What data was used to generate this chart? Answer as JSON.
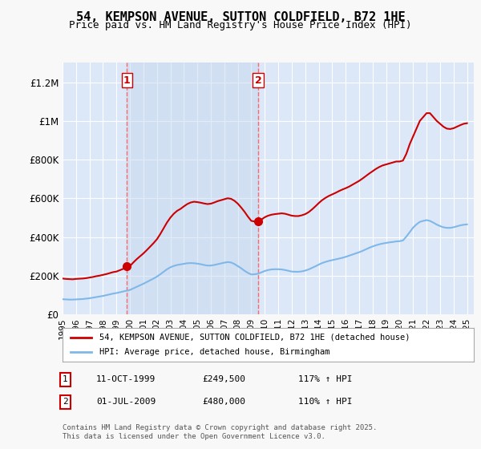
{
  "title": "54, KEMPSON AVENUE, SUTTON COLDFIELD, B72 1HE",
  "subtitle": "Price paid vs. HM Land Registry's House Price Index (HPI)",
  "ylabel_ticks": [
    "£0",
    "£200K",
    "£400K",
    "£600K",
    "£800K",
    "£1M",
    "£1.2M"
  ],
  "ytick_values": [
    0,
    200000,
    400000,
    600000,
    800000,
    1000000,
    1200000
  ],
  "ylim": [
    0,
    1300000
  ],
  "xlim_start": 1995.0,
  "xlim_end": 2025.5,
  "background_color": "#f0f4ff",
  "plot_bg_color": "#dce8f8",
  "red_line_color": "#cc0000",
  "blue_line_color": "#7fb8e8",
  "marker1_color": "#cc0000",
  "marker2_color": "#cc0000",
  "vline_color": "#ff6666",
  "vline_x1": 1999.78,
  "vline_x2": 2009.5,
  "marker1_x": 1999.78,
  "marker1_y": 249500,
  "marker2_x": 2009.5,
  "marker2_y": 480000,
  "legend_line1": "54, KEMPSON AVENUE, SUTTON COLDFIELD, B72 1HE (detached house)",
  "legend_line2": "HPI: Average price, detached house, Birmingham",
  "footnote": "Contains HM Land Registry data © Crown copyright and database right 2025.\nThis data is licensed under the Open Government Licence v3.0.",
  "table_row1_num": "1",
  "table_row1_date": "11-OCT-1999",
  "table_row1_price": "£249,500",
  "table_row1_hpi": "117% ↑ HPI",
  "table_row2_num": "2",
  "table_row2_date": "01-JUL-2009",
  "table_row2_price": "£480,000",
  "table_row2_hpi": "110% ↑ HPI",
  "red_hpi_data": {
    "years": [
      1995.0,
      1995.25,
      1995.5,
      1995.75,
      1996.0,
      1996.25,
      1996.5,
      1996.75,
      1997.0,
      1997.25,
      1997.5,
      1997.75,
      1998.0,
      1998.25,
      1998.5,
      1998.75,
      1999.0,
      1999.25,
      1999.5,
      1999.75,
      2000.0,
      2000.25,
      2000.5,
      2000.75,
      2001.0,
      2001.25,
      2001.5,
      2001.75,
      2002.0,
      2002.25,
      2002.5,
      2002.75,
      2003.0,
      2003.25,
      2003.5,
      2003.75,
      2004.0,
      2004.25,
      2004.5,
      2004.75,
      2005.0,
      2005.25,
      2005.5,
      2005.75,
      2006.0,
      2006.25,
      2006.5,
      2006.75,
      2007.0,
      2007.25,
      2007.5,
      2007.75,
      2008.0,
      2008.25,
      2008.5,
      2008.75,
      2009.0,
      2009.25,
      2009.5,
      2009.75,
      2010.0,
      2010.25,
      2010.5,
      2010.75,
      2011.0,
      2011.25,
      2011.5,
      2011.75,
      2012.0,
      2012.25,
      2012.5,
      2012.75,
      2013.0,
      2013.25,
      2013.5,
      2013.75,
      2014.0,
      2014.25,
      2014.5,
      2014.75,
      2015.0,
      2015.25,
      2015.5,
      2015.75,
      2016.0,
      2016.25,
      2016.5,
      2016.75,
      2017.0,
      2017.25,
      2017.5,
      2017.75,
      2018.0,
      2018.25,
      2018.5,
      2018.75,
      2019.0,
      2019.25,
      2019.5,
      2019.75,
      2020.0,
      2020.25,
      2020.5,
      2020.75,
      2021.0,
      2021.25,
      2021.5,
      2021.75,
      2022.0,
      2022.25,
      2022.5,
      2022.75,
      2023.0,
      2023.25,
      2023.5,
      2023.75,
      2024.0,
      2024.25,
      2024.5,
      2024.75,
      2025.0
    ],
    "values": [
      185000,
      183000,
      182000,
      181000,
      183000,
      184000,
      185000,
      187000,
      190000,
      193000,
      197000,
      200000,
      204000,
      208000,
      213000,
      218000,
      221000,
      228000,
      235000,
      242000,
      249500,
      268000,
      285000,
      300000,
      315000,
      332000,
      350000,
      368000,
      388000,
      415000,
      445000,
      475000,
      500000,
      520000,
      535000,
      545000,
      558000,
      570000,
      578000,
      582000,
      580000,
      577000,
      573000,
      570000,
      572000,
      578000,
      585000,
      590000,
      595000,
      600000,
      597000,
      587000,
      572000,
      552000,
      530000,
      505000,
      483000,
      480000,
      480000,
      490000,
      502000,
      510000,
      515000,
      518000,
      520000,
      522000,
      520000,
      515000,
      510000,
      508000,
      508000,
      512000,
      518000,
      528000,
      542000,
      558000,
      575000,
      590000,
      602000,
      612000,
      620000,
      628000,
      637000,
      645000,
      652000,
      660000,
      670000,
      680000,
      690000,
      702000,
      715000,
      728000,
      740000,
      752000,
      762000,
      770000,
      775000,
      780000,
      785000,
      790000,
      790000,
      795000,
      830000,
      880000,
      920000,
      960000,
      1000000,
      1020000,
      1040000,
      1040000,
      1020000,
      1000000,
      985000,
      970000,
      960000,
      958000,
      962000,
      970000,
      978000,
      985000,
      988000
    ]
  },
  "blue_hpi_data": {
    "years": [
      1995.0,
      1995.25,
      1995.5,
      1995.75,
      1996.0,
      1996.25,
      1996.5,
      1996.75,
      1997.0,
      1997.25,
      1997.5,
      1997.75,
      1998.0,
      1998.25,
      1998.5,
      1998.75,
      1999.0,
      1999.25,
      1999.5,
      1999.75,
      2000.0,
      2000.25,
      2000.5,
      2000.75,
      2001.0,
      2001.25,
      2001.5,
      2001.75,
      2002.0,
      2002.25,
      2002.5,
      2002.75,
      2003.0,
      2003.25,
      2003.5,
      2003.75,
      2004.0,
      2004.25,
      2004.5,
      2004.75,
      2005.0,
      2005.25,
      2005.5,
      2005.75,
      2006.0,
      2006.25,
      2006.5,
      2006.75,
      2007.0,
      2007.25,
      2007.5,
      2007.75,
      2008.0,
      2008.25,
      2008.5,
      2008.75,
      2009.0,
      2009.25,
      2009.5,
      2009.75,
      2010.0,
      2010.25,
      2010.5,
      2010.75,
      2011.0,
      2011.25,
      2011.5,
      2011.75,
      2012.0,
      2012.25,
      2012.5,
      2012.75,
      2013.0,
      2013.25,
      2013.5,
      2013.75,
      2014.0,
      2014.25,
      2014.5,
      2014.75,
      2015.0,
      2015.25,
      2015.5,
      2015.75,
      2016.0,
      2016.25,
      2016.5,
      2016.75,
      2017.0,
      2017.25,
      2017.5,
      2017.75,
      2018.0,
      2018.25,
      2018.5,
      2018.75,
      2019.0,
      2019.25,
      2019.5,
      2019.75,
      2020.0,
      2020.25,
      2020.5,
      2020.75,
      2021.0,
      2021.25,
      2021.5,
      2021.75,
      2022.0,
      2022.25,
      2022.5,
      2022.75,
      2023.0,
      2023.25,
      2023.5,
      2023.75,
      2024.0,
      2024.25,
      2024.5,
      2024.75,
      2025.0
    ],
    "values": [
      78000,
      77000,
      76000,
      76000,
      77000,
      78000,
      79000,
      81000,
      83000,
      86000,
      89000,
      92000,
      95000,
      99000,
      103000,
      107000,
      110000,
      114000,
      118000,
      122000,
      126000,
      134000,
      142000,
      150000,
      158000,
      167000,
      176000,
      185000,
      195000,
      207000,
      220000,
      233000,
      243000,
      250000,
      255000,
      258000,
      261000,
      264000,
      265000,
      264000,
      262000,
      259000,
      255000,
      252000,
      252000,
      255000,
      259000,
      263000,
      267000,
      270000,
      268000,
      260000,
      249000,
      238000,
      225000,
      214000,
      206000,
      207000,
      210000,
      217000,
      224000,
      229000,
      232000,
      233000,
      233000,
      232000,
      229000,
      225000,
      221000,
      220000,
      220000,
      222000,
      226000,
      232000,
      240000,
      248000,
      257000,
      265000,
      271000,
      276000,
      280000,
      284000,
      288000,
      292000,
      297000,
      303000,
      309000,
      315000,
      321000,
      328000,
      336000,
      344000,
      351000,
      357000,
      362000,
      366000,
      369000,
      372000,
      374000,
      377000,
      378000,
      382000,
      402000,
      425000,
      448000,
      465000,
      478000,
      483000,
      487000,
      483000,
      474000,
      464000,
      456000,
      450000,
      447000,
      447000,
      450000,
      455000,
      460000,
      463000,
      465000
    ]
  }
}
